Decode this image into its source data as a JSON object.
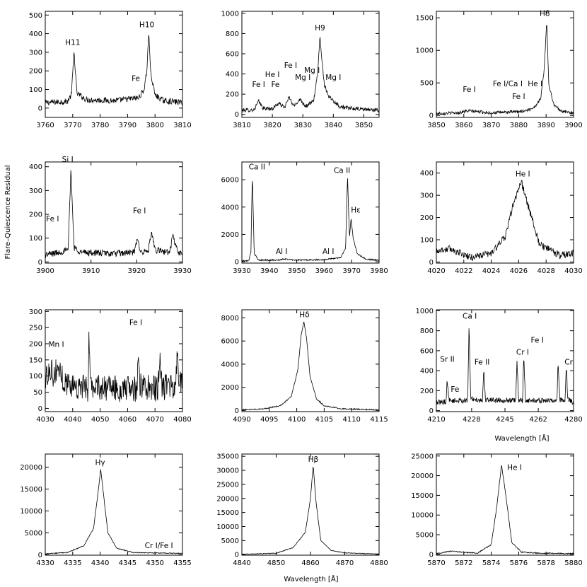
{
  "figure": {
    "ylabel": "Flare–Quiescence Residual",
    "xlabel": "Wavelength [Å]"
  },
  "chart_data": [
    {
      "type": "line",
      "xlim": [
        3760,
        3810
      ],
      "ylim": [
        -50,
        520
      ],
      "xticks": [
        3760,
        3770,
        3780,
        3790,
        3800,
        3810
      ],
      "yticks": [
        0,
        100,
        200,
        300,
        400,
        500
      ],
      "series": [
        {
          "x": [
            3760,
            3768,
            3769.5,
            3770.5,
            3771.5,
            3775,
            3785,
            3794,
            3796,
            3797,
            3797.7,
            3798.5,
            3800,
            3803,
            3810
          ],
          "y": [
            30,
            35,
            70,
            305,
            80,
            45,
            40,
            55,
            100,
            200,
            400,
            180,
            70,
            40,
            30
          ],
          "noise": 16
        }
      ],
      "annotations": [
        {
          "text": "H11",
          "x": 3770,
          "y": 340
        },
        {
          "text": "H10",
          "x": 3797,
          "y": 435
        },
        {
          "text": "Fe",
          "x": 3793,
          "y": 145
        }
      ]
    },
    {
      "type": "line",
      "xlim": [
        3810,
        3855
      ],
      "ylim": [
        -30,
        1020
      ],
      "xticks": [
        3810,
        3820,
        3830,
        3840,
        3850
      ],
      "yticks": [
        0,
        200,
        400,
        600,
        800,
        1000
      ],
      "series": [
        {
          "x": [
            3810,
            3814,
            3815.5,
            3817,
            3820,
            3822,
            3824,
            3825.5,
            3827,
            3829,
            3831,
            3833.5,
            3834.8,
            3835.6,
            3837,
            3838.5,
            3842,
            3845,
            3850,
            3855
          ],
          "y": [
            40,
            45,
            130,
            60,
            55,
            110,
            70,
            170,
            80,
            150,
            80,
            130,
            390,
            770,
            300,
            180,
            80,
            60,
            50,
            40
          ],
          "noise": 20
        }
      ],
      "annotations": [
        {
          "text": "Fe I",
          "x": 3815.5,
          "y": 270
        },
        {
          "text": "He I",
          "x": 3820,
          "y": 370
        },
        {
          "text": "Fe",
          "x": 3821,
          "y": 270
        },
        {
          "text": "Fe I",
          "x": 3826,
          "y": 460
        },
        {
          "text": "Mg I",
          "x": 3830,
          "y": 340
        },
        {
          "text": "Mg I",
          "x": 3833,
          "y": 410
        },
        {
          "text": "H9",
          "x": 3835.6,
          "y": 830
        },
        {
          "text": "Mg I",
          "x": 3840,
          "y": 340
        }
      ]
    },
    {
      "type": "line",
      "xlim": [
        3850,
        3900
      ],
      "ylim": [
        -30,
        1600
      ],
      "xticks": [
        3850,
        3860,
        3870,
        3880,
        3890,
        3900
      ],
      "yticks": [
        0,
        500,
        1000,
        1500
      ],
      "series": [
        {
          "x": [
            3850,
            3858,
            3860,
            3862,
            3870,
            3875,
            3880,
            3884,
            3886,
            3888,
            3889.3,
            3890.2,
            3891,
            3893,
            3896,
            3900
          ],
          "y": [
            30,
            40,
            60,
            70,
            40,
            50,
            55,
            90,
            140,
            260,
            700,
            1460,
            450,
            150,
            60,
            40
          ],
          "noise": 24
        }
      ],
      "annotations": [
        {
          "text": "Fe I",
          "x": 3862,
          "y": 360
        },
        {
          "text": "Fe I/Ca I",
          "x": 3876,
          "y": 450
        },
        {
          "text": "He I",
          "x": 3886,
          "y": 450
        },
        {
          "text": "Fe I",
          "x": 3880,
          "y": 250
        },
        {
          "text": "H8",
          "x": 3889.5,
          "y": 1530
        }
      ]
    },
    {
      "type": "line",
      "xlim": [
        3900,
        3930
      ],
      "ylim": [
        -5,
        420
      ],
      "xticks": [
        3900,
        3910,
        3920,
        3930
      ],
      "yticks": [
        0,
        100,
        200,
        300,
        400
      ],
      "series": [
        {
          "x": [
            3900,
            3903,
            3905,
            3905.6,
            3906.3,
            3908,
            3915,
            3919.5,
            3920.1,
            3921,
            3922.5,
            3923.2,
            3924,
            3927.2,
            3927.9,
            3929,
            3930
          ],
          "y": [
            30,
            40,
            50,
            390,
            60,
            40,
            35,
            40,
            95,
            40,
            45,
            120,
            50,
            40,
            110,
            40,
            30
          ],
          "noise": 14
        }
      ],
      "annotations": [
        {
          "text": "Fe I",
          "x": 3901.6,
          "y": 170
        },
        {
          "text": "Si I",
          "x": 3904.9,
          "y": 420
        },
        {
          "text": "Fe I",
          "x": 3920.6,
          "y": 205
        }
      ]
    },
    {
      "type": "line",
      "xlim": [
        3930,
        3980
      ],
      "ylim": [
        -100,
        7300
      ],
      "xticks": [
        3930,
        3940,
        3950,
        3960,
        3970,
        3980
      ],
      "yticks": [
        0,
        2000,
        4000,
        6000
      ],
      "series": [
        {
          "x": [
            3930,
            3932.5,
            3933.3,
            3933.8,
            3934.5,
            3936,
            3944,
            3945,
            3950,
            3960,
            3961.5,
            3966,
            3967.8,
            3968.5,
            3969.2,
            3969.8,
            3970.5,
            3972,
            3975,
            3980
          ],
          "y": [
            50,
            80,
            700,
            6500,
            600,
            120,
            120,
            200,
            120,
            150,
            200,
            300,
            1000,
            6300,
            1800,
            3200,
            1800,
            600,
            200,
            100
          ],
          "noise": 50
        }
      ],
      "annotations": [
        {
          "text": "Ca II",
          "x": 3935.5,
          "y": 6750
        },
        {
          "text": "Ca II",
          "x": 3966.5,
          "y": 6500
        },
        {
          "text": "Hε",
          "x": 3971.5,
          "y": 3600
        },
        {
          "text": "Al I",
          "x": 3944.5,
          "y": 580
        },
        {
          "text": "Al I",
          "x": 3961.5,
          "y": 580
        }
      ]
    },
    {
      "type": "line",
      "xlim": [
        4020,
        4030
      ],
      "ylim": [
        -5,
        450
      ],
      "xticks": [
        4020,
        4022,
        4024,
        4026,
        4028,
        4030
      ],
      "yticks": [
        0,
        100,
        200,
        300,
        400
      ],
      "series": [
        {
          "x": [
            4020,
            4021,
            4022.5,
            4024,
            4025,
            4025.6,
            4026.2,
            4026.8,
            4027.5,
            4029,
            4030
          ],
          "y": [
            50,
            60,
            20,
            40,
            110,
            260,
            360,
            230,
            80,
            30,
            40
          ],
          "noise": 16
        }
      ],
      "annotations": [
        {
          "text": "He I",
          "x": 4026.3,
          "y": 385
        }
      ]
    },
    {
      "type": "line",
      "xlim": [
        4030,
        4080
      ],
      "ylim": [
        -10,
        305
      ],
      "xticks": [
        4030,
        4040,
        4050,
        4060,
        4070,
        4080
      ],
      "yticks": [
        0,
        50,
        100,
        150,
        200,
        250,
        300
      ],
      "series": [
        {
          "x": [
            4030,
            4032,
            4033.2,
            4034.5,
            4037,
            4045.5,
            4045.9,
            4046.5,
            4055,
            4063.5,
            4063.9,
            4064.5,
            4071,
            4071.7,
            4072.5,
            4077.5,
            4078.1,
            4078.7,
            4080
          ],
          "y": [
            90,
            130,
            95,
            130,
            80,
            60,
            210,
            70,
            60,
            60,
            210,
            70,
            60,
            160,
            65,
            65,
            170,
            70,
            100
          ],
          "noise": 40
        }
      ],
      "annotations": [
        {
          "text": "Mn I",
          "x": 4034,
          "y": 190
        },
        {
          "text": "Fe I",
          "x": 4063,
          "y": 258
        }
      ]
    },
    {
      "type": "line",
      "xlim": [
        4090,
        4115
      ],
      "ylim": [
        -100,
        8700
      ],
      "xticks": [
        4090,
        4095,
        4100,
        4105,
        4110,
        4115
      ],
      "yticks": [
        0,
        2000,
        4000,
        6000,
        8000
      ],
      "series": [
        {
          "x": [
            4090,
            4094,
            4097,
            4099,
            4100.2,
            4100.8,
            4101.3,
            4101.8,
            4102.4,
            4103.6,
            4105,
            4108,
            4115
          ],
          "y": [
            50,
            150,
            400,
            1200,
            3500,
            6500,
            7700,
            6200,
            3000,
            1000,
            400,
            150,
            50
          ],
          "noise": 50
        }
      ],
      "annotations": [
        {
          "text": "Hδ",
          "x": 4101.4,
          "y": 8050
        }
      ]
    },
    {
      "type": "line",
      "xlim": [
        4210,
        4280
      ],
      "ylim": [
        -10,
        1010
      ],
      "xticks": [
        4210,
        4228,
        4245,
        4262,
        4280
      ],
      "yticks": [
        0,
        200,
        400,
        600,
        800,
        1000
      ],
      "series": [
        {
          "x": [
            4210,
            4215,
            4215.5,
            4216.5,
            4226,
            4226.7,
            4227.5,
            4233.5,
            4234.2,
            4235,
            4250.5,
            4251.1,
            4252,
            4254,
            4254.6,
            4255.5,
            4271.5,
            4272.1,
            4273,
            4275.6,
            4276.3,
            4277,
            4280
          ],
          "y": [
            80,
            90,
            320,
            100,
            100,
            880,
            120,
            100,
            420,
            110,
            100,
            490,
            100,
            100,
            540,
            100,
            100,
            490,
            110,
            100,
            460,
            120,
            80
          ],
          "noise": 26
        }
      ],
      "annotations": [
        {
          "text": "Sr II",
          "x": 4215.6,
          "y": 490
        },
        {
          "text": "Fe",
          "x": 4219.5,
          "y": 190
        },
        {
          "text": "Ca I",
          "x": 4227,
          "y": 920
        },
        {
          "text": "Fe II",
          "x": 4233.3,
          "y": 460
        },
        {
          "text": "Cr I",
          "x": 4254,
          "y": 560
        },
        {
          "text": "Fe I",
          "x": 4261.5,
          "y": 680
        },
        {
          "text": "Cr",
          "x": 4277.5,
          "y": 460
        }
      ]
    },
    {
      "type": "line",
      "xlim": [
        4330,
        4355
      ],
      "ylim": [
        -100,
        23000
      ],
      "xticks": [
        4330,
        4335,
        4340,
        4345,
        4350,
        4355
      ],
      "yticks": [
        0,
        5000,
        10000,
        15000,
        20000
      ],
      "series": [
        {
          "x": [
            4330,
            4334,
            4337,
            4338.8,
            4339.6,
            4340.1,
            4340.6,
            4341.4,
            4343,
            4346,
            4355
          ],
          "y": [
            200,
            500,
            2000,
            6000,
            14000,
            19500,
            14000,
            5000,
            1500,
            500,
            300
          ],
          "noise": 100
        }
      ],
      "annotations": [
        {
          "text": "Hγ",
          "x": 4340,
          "y": 20500
        },
        {
          "text": "Cr I/Fe I",
          "x": 4350.7,
          "y": 1500
        }
      ]
    },
    {
      "type": "line",
      "xlim": [
        4840,
        4880
      ],
      "ylim": [
        -200,
        35800
      ],
      "xticks": [
        4840,
        4850,
        4860,
        4870,
        4880
      ],
      "yticks": [
        0,
        5000,
        10000,
        15000,
        20000,
        25000,
        30000,
        35000
      ],
      "series": [
        {
          "x": [
            4840,
            4850,
            4855,
            4858.5,
            4860,
            4860.8,
            4861.6,
            4863,
            4866,
            4870,
            4880
          ],
          "y": [
            100,
            500,
            2500,
            8000,
            20000,
            31800,
            19000,
            5000,
            1500,
            600,
            200
          ],
          "noise": 120
        }
      ],
      "annotations": [
        {
          "text": "Hβ",
          "x": 4860.8,
          "y": 33000
        }
      ]
    },
    {
      "type": "line",
      "xlim": [
        5870,
        5880
      ],
      "ylim": [
        -200,
        25500
      ],
      "xticks": [
        5870,
        5872,
        5874,
        5876,
        5878,
        5880
      ],
      "yticks": [
        0,
        5000,
        10000,
        15000,
        20000,
        25000
      ],
      "series": [
        {
          "x": [
            5870,
            5871,
            5873,
            5874,
            5874.4,
            5874.75,
            5875.1,
            5875.5,
            5876.2,
            5877.5,
            5880
          ],
          "y": [
            200,
            800,
            300,
            2500,
            12000,
            22800,
            14000,
            3000,
            600,
            300,
            200
          ],
          "noise": 140
        }
      ],
      "annotations": [
        {
          "text": "He I",
          "x": 5875.7,
          "y": 21500
        }
      ]
    }
  ]
}
